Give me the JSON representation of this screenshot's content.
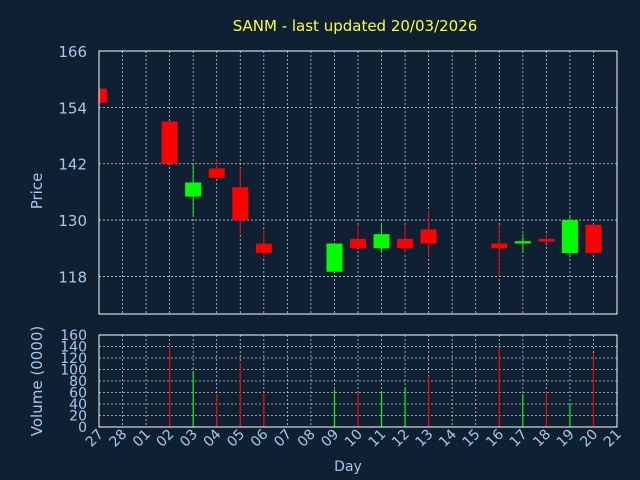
{
  "title": "SANM - last updated 20/03/2026",
  "colors": {
    "background": "#0f2033",
    "title": "#ffff33",
    "axis_text": "#a8c8e8",
    "frame": "#ffffff",
    "grid": "#ffffff",
    "up": "#00ff00",
    "down": "#ff0000"
  },
  "chart_data": [
    {
      "type": "candlestick",
      "ylabel": "Price",
      "ylim": [
        110,
        166
      ],
      "yticks": [
        166,
        154,
        142,
        130,
        118
      ],
      "x_labels": [
        "27",
        "28",
        "01",
        "02",
        "03",
        "04",
        "05",
        "06",
        "07",
        "08",
        "09",
        "10",
        "11",
        "12",
        "13",
        "14",
        "15",
        "16",
        "17",
        "18",
        "19",
        "20",
        "21"
      ],
      "grid": true,
      "candles": [
        {
          "x": "27",
          "open": 158,
          "close": 155,
          "high": 158,
          "low": 155
        },
        {
          "x": "02",
          "open": 151,
          "close": 142,
          "high": 151,
          "low": 142
        },
        {
          "x": "03",
          "open": 135,
          "close": 138,
          "high": 142,
          "low": 131
        },
        {
          "x": "04",
          "open": 141,
          "close": 139,
          "high": 143,
          "low": 139
        },
        {
          "x": "05",
          "open": 137,
          "close": 130,
          "high": 141,
          "low": 127
        },
        {
          "x": "06",
          "open": 125,
          "close": 123,
          "high": 128,
          "low": 122
        },
        {
          "x": "09",
          "open": 119,
          "close": 125,
          "high": 125,
          "low": 119
        },
        {
          "x": "10",
          "open": 126,
          "close": 124,
          "high": 129,
          "low": 124
        },
        {
          "x": "11",
          "open": 124,
          "close": 127,
          "high": 129,
          "low": 123
        },
        {
          "x": "12",
          "open": 126,
          "close": 124,
          "high": 129,
          "low": 123
        },
        {
          "x": "13",
          "open": 128,
          "close": 125,
          "high": 132,
          "low": 122
        },
        {
          "x": "16",
          "open": 125,
          "close": 124,
          "high": 129,
          "low": 118
        },
        {
          "x": "17",
          "open": 125,
          "close": 125.5,
          "high": 127,
          "low": 123
        },
        {
          "x": "18",
          "open": 126,
          "close": 125.4,
          "high": 127,
          "low": 125
        },
        {
          "x": "19",
          "open": 123,
          "close": 130,
          "high": 131,
          "low": 122
        },
        {
          "x": "20",
          "open": 129,
          "close": 123,
          "high": 129,
          "low": 123
        }
      ]
    },
    {
      "type": "bar",
      "ylabel": "Volume (0000)",
      "xlabel": "Day",
      "ylim": [
        0,
        160
      ],
      "yticks": [
        160,
        140,
        120,
        100,
        80,
        60,
        40,
        20,
        0
      ],
      "x_labels": [
        "27",
        "28",
        "01",
        "02",
        "03",
        "04",
        "05",
        "06",
        "07",
        "08",
        "09",
        "10",
        "11",
        "12",
        "13",
        "14",
        "15",
        "16",
        "17",
        "18",
        "19",
        "20",
        "21"
      ],
      "grid": true,
      "bars": [
        {
          "x": "02",
          "value": 140,
          "direction": "down"
        },
        {
          "x": "03",
          "value": 97,
          "direction": "up"
        },
        {
          "x": "04",
          "value": 57,
          "direction": "down"
        },
        {
          "x": "05",
          "value": 112,
          "direction": "down"
        },
        {
          "x": "06",
          "value": 60,
          "direction": "down"
        },
        {
          "x": "09",
          "value": 65,
          "direction": "up"
        },
        {
          "x": "10",
          "value": 60,
          "direction": "down"
        },
        {
          "x": "11",
          "value": 62,
          "direction": "up"
        },
        {
          "x": "12",
          "value": 70,
          "direction": "up"
        },
        {
          "x": "13",
          "value": 88,
          "direction": "down"
        },
        {
          "x": "16",
          "value": 138,
          "direction": "down"
        },
        {
          "x": "17",
          "value": 57,
          "direction": "up"
        },
        {
          "x": "18",
          "value": 63,
          "direction": "down"
        },
        {
          "x": "19",
          "value": 40,
          "direction": "up"
        },
        {
          "x": "20",
          "value": 128,
          "direction": "down"
        }
      ]
    }
  ]
}
